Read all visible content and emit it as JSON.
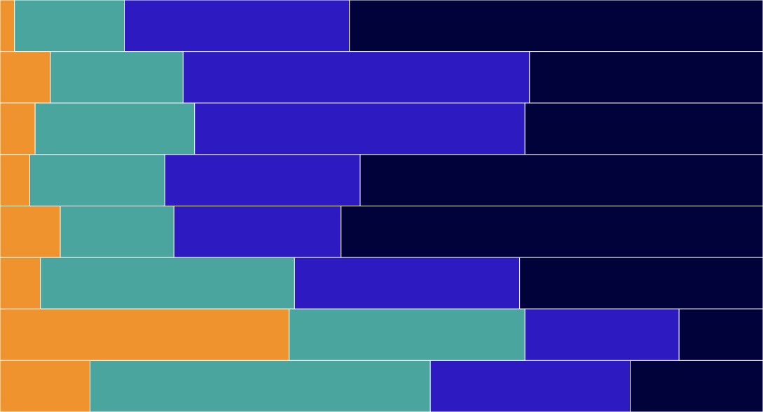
{
  "chart_data": {
    "type": "stacked-bar-horizontal",
    "categories": [
      null,
      null,
      null,
      null,
      null,
      null,
      null,
      null
    ],
    "xlim": [
      0,
      100
    ],
    "series": [
      {
        "color": "#ef932e",
        "values": [
          1.9,
          6.6,
          4.6,
          3.9,
          7.9,
          5.3,
          37.9,
          11.8
        ]
      },
      {
        "color": "#4aa59f",
        "values": [
          14.4,
          17.4,
          20.9,
          17.7,
          14.9,
          33.3,
          30.9,
          44.6
        ]
      },
      {
        "color": "#2d1bc1",
        "values": [
          29.5,
          45.4,
          43.3,
          25.6,
          21.9,
          29.5,
          20.2,
          26.2
        ]
      },
      {
        "color": "#02023a",
        "values": [
          54.2,
          30.6,
          31.2,
          52.8,
          55.3,
          31.9,
          11.0,
          17.4
        ]
      }
    ]
  }
}
